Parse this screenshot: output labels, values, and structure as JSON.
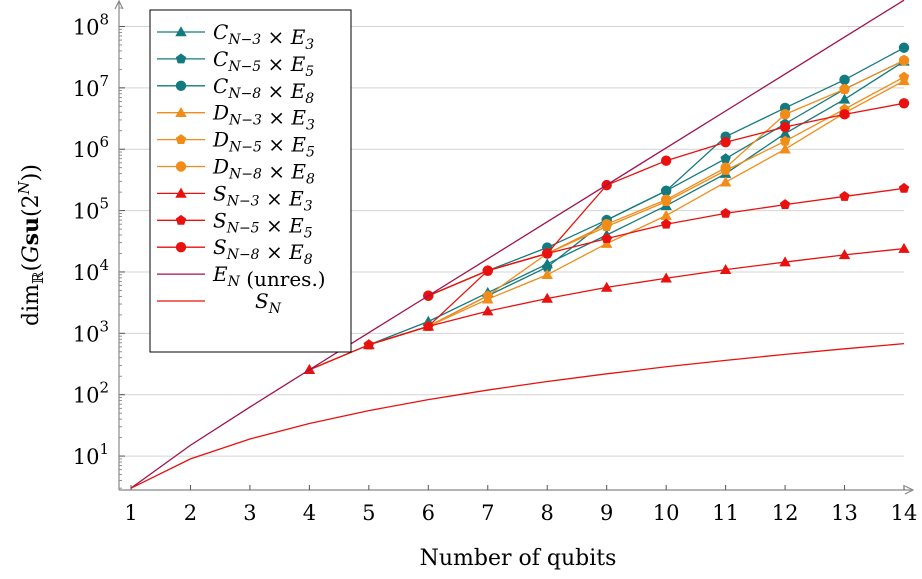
{
  "chart_data": {
    "type": "line",
    "title": "",
    "xlabel": "Number of qubits",
    "ylabel": "dimℝ(G𝔰𝔲(2^N))",
    "ylog": true,
    "xlim": [
      1,
      14
    ],
    "ylim": [
      2.8,
      200000000
    ],
    "grid": "horizontal",
    "legend_placement": "top-left",
    "x_ticks": [
      "1",
      "2",
      "3",
      "4",
      "5",
      "6",
      "7",
      "8",
      "9",
      "10",
      "11",
      "12",
      "13",
      "14"
    ],
    "y_ticks": [
      {
        "value": 10,
        "label": "10^1"
      },
      {
        "value": 100,
        "label": "10^2"
      },
      {
        "value": 1000,
        "label": "10^3"
      },
      {
        "value": 10000,
        "label": "10^4"
      },
      {
        "value": 100000,
        "label": "10^5"
      },
      {
        "value": 1000000,
        "label": "10^6"
      },
      {
        "value": 10000000,
        "label": "10^7"
      },
      {
        "value": 100000000,
        "label": "10^8"
      }
    ],
    "series": [
      {
        "name": "C_{N−3} × E_3",
        "color": "#137a7f",
        "marker": "triangle",
        "x": [
          4,
          5,
          6,
          7,
          8,
          9,
          10,
          11,
          12,
          13,
          14
        ],
        "y": [
          255,
          650,
          1560,
          4600,
          13500,
          40000,
          120000,
          400000,
          1800000,
          6500000,
          27000000
        ]
      },
      {
        "name": "C_{N−5} × E_5",
        "color": "#137a7f",
        "marker": "pentagon",
        "x": [
          5,
          6,
          7,
          8,
          9,
          10,
          11,
          12,
          13,
          14
        ],
        "y": [
          650,
          1300,
          4100,
          12000,
          70000,
          210000,
          700000,
          2600000,
          9500000,
          28000000
        ]
      },
      {
        "name": "C_{N−8} × E_8",
        "color": "#137a7f",
        "marker": "circle",
        "x": [
          6,
          7,
          8,
          9,
          10,
          11,
          12,
          13,
          14
        ],
        "y": [
          4100,
          10500,
          25000,
          70000,
          210000,
          1600000,
          4700000,
          13500000,
          45000000
        ]
      },
      {
        "name": "D_{N−3} × E_3",
        "color": "#f28c18",
        "marker": "triangle",
        "x": [
          4,
          5,
          6,
          7,
          8,
          9,
          10,
          11,
          12,
          13,
          14
        ],
        "y": [
          255,
          650,
          1300,
          3600,
          9000,
          29000,
          83000,
          290000,
          1000000,
          3900000,
          13000000
        ]
      },
      {
        "name": "D_{N−5} × E_5",
        "color": "#f28c18",
        "marker": "pentagon",
        "x": [
          5,
          6,
          7,
          8,
          9,
          10,
          11,
          12,
          13,
          14
        ],
        "y": [
          650,
          1300,
          4100,
          20000,
          55000,
          140000,
          450000,
          1350000,
          4500000,
          15000000
        ]
      },
      {
        "name": "D_{N−8} × E_8",
        "color": "#f28c18",
        "marker": "circle",
        "x": [
          6,
          7,
          8,
          9,
          10,
          11,
          12,
          13,
          14
        ],
        "y": [
          4100,
          10500,
          20000,
          60000,
          150000,
          500000,
          3700000,
          9500000,
          28000000
        ]
      },
      {
        "name": "S_{N−3} × E_3",
        "color": "#e8110f",
        "marker": "triangle",
        "x": [
          4,
          5,
          6,
          7,
          8,
          9,
          10,
          11,
          12,
          13,
          14
        ],
        "y": [
          255,
          650,
          1300,
          2300,
          3700,
          5600,
          7900,
          10900,
          14500,
          19000,
          24000
        ]
      },
      {
        "name": "S_{N−5} × E_5",
        "color": "#e8110f",
        "marker": "pentagon",
        "x": [
          5,
          6,
          7,
          8,
          9,
          10,
          11,
          12,
          13,
          14
        ],
        "y": [
          650,
          1300,
          10500,
          20000,
          35000,
          60000,
          90000,
          125000,
          170000,
          230000
        ]
      },
      {
        "name": "S_{N−8} × E_8",
        "color": "#e8110f",
        "marker": "circle",
        "x": [
          6,
          7,
          8,
          9,
          10,
          11,
          12,
          13,
          14
        ],
        "y": [
          4100,
          10500,
          20000,
          260000,
          650000,
          1300000,
          2300000,
          3700000,
          5600000
        ]
      },
      {
        "name": "E_N (unres.)",
        "color": "#a3104e",
        "marker": "none",
        "x": [
          1,
          2,
          3,
          4,
          5,
          6,
          7,
          8,
          9,
          10,
          11,
          12,
          13,
          14
        ],
        "y": [
          3,
          15,
          63,
          255,
          1023,
          4095,
          16383,
          65535,
          262143,
          1048575,
          4194303,
          16777215,
          67108863,
          268435455
        ]
      },
      {
        "name": "S_N",
        "color": "#e8110f",
        "marker": "none",
        "x": [
          1,
          2,
          3,
          4,
          5,
          6,
          7,
          8,
          9,
          10,
          11,
          12,
          13,
          14
        ],
        "y": [
          3,
          9,
          19,
          34,
          55,
          83,
          119,
          164,
          219,
          285,
          363,
          454,
          559,
          679
        ]
      }
    ]
  }
}
